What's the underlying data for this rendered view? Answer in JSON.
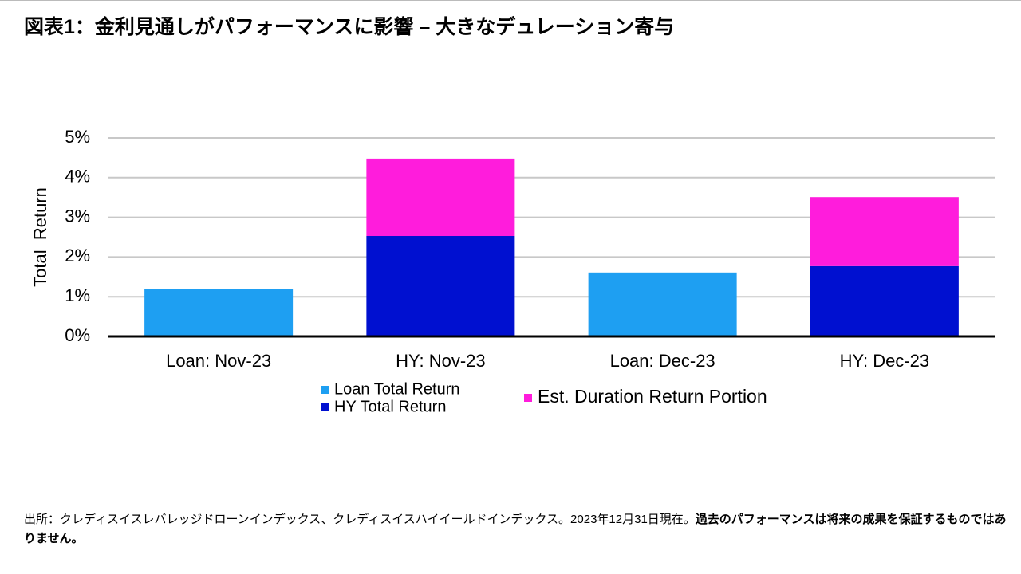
{
  "title": "図表1：金利見通しがパフォーマンスに影響 – 大きなデュレーション寄与",
  "chart_data": {
    "type": "stacked-bar",
    "y_label": "Total  Return",
    "categories": [
      "Loan: Nov-23",
      "HY: Nov-23",
      "Loan: Dec-23",
      "HY: Dec-23"
    ],
    "series": [
      {
        "name": "Loan Total Return",
        "color": "#1e9ff2",
        "values": [
          1.2,
          null,
          1.61,
          null
        ]
      },
      {
        "name": "HY Total Return",
        "color": "#0010d0",
        "values": [
          null,
          2.53,
          null,
          1.77
        ]
      },
      {
        "name": "Est. Duration Return Portion",
        "color": "#ff1cdc",
        "values": [
          null,
          1.95,
          null,
          1.74
        ]
      }
    ],
    "ylim": [
      0,
      5
    ],
    "yticks": [
      {
        "value": 0,
        "label": "0%"
      },
      {
        "value": 1,
        "label": "1%"
      },
      {
        "value": 2,
        "label": "2%"
      },
      {
        "value": 3,
        "label": "3%"
      },
      {
        "value": 4,
        "label": "4%"
      },
      {
        "value": 5,
        "label": "5%"
      }
    ],
    "grid": true
  },
  "footer": {
    "source": "出所：クレディスイスレバレッジドローンインデックス、クレディスイスハイイールドインデックス。2023年12月31日現在。",
    "disclaimer": "過去のパフォーマンスは将来の成果を保証するものではありません。"
  }
}
